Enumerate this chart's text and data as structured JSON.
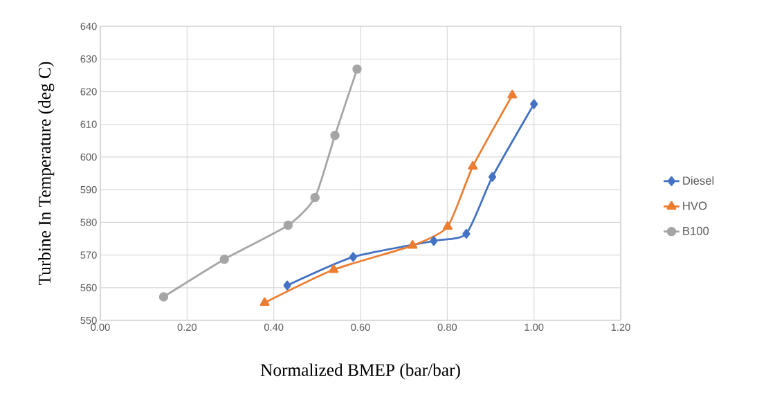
{
  "chart_data": {
    "type": "line",
    "xlabel": "Normalized BMEP (bar/bar)",
    "ylabel": "Turbine In Temperature (deg C)",
    "xlim": [
      0,
      1.2
    ],
    "ylim": [
      550,
      640
    ],
    "xticks": [
      {
        "value": 0,
        "label": "0.00"
      },
      {
        "value": 0.2,
        "label": "0.20"
      },
      {
        "value": 0.4,
        "label": "0.40"
      },
      {
        "value": 0.6,
        "label": "0.60"
      },
      {
        "value": 0.8,
        "label": "0.80"
      },
      {
        "value": 1.0,
        "label": "1.00"
      },
      {
        "value": 1.2,
        "label": "1.20"
      }
    ],
    "yticks": [
      550,
      560,
      570,
      580,
      590,
      600,
      610,
      620,
      630,
      640
    ],
    "grid": true,
    "legend": "right",
    "line_style": "solid",
    "series": [
      {
        "name": "Diesel",
        "color": "#4472c4",
        "marker": "diamond",
        "x": [
          0.431,
          0.583,
          0.769,
          0.844,
          0.904,
          1.0
        ],
        "values": [
          560.7,
          569.4,
          574.3,
          576.5,
          593.9,
          616.2
        ]
      },
      {
        "name": "HVO",
        "color": "#ed7d31",
        "marker": "triangle",
        "x": [
          0.379,
          0.538,
          0.72,
          0.801,
          0.859,
          0.95
        ],
        "values": [
          555.4,
          565.5,
          572.9,
          578.7,
          597.1,
          618.9
        ]
      },
      {
        "name": "B100",
        "color": "#a5a5a5",
        "marker": "circle",
        "x": [
          0.146,
          0.286,
          0.433,
          0.495,
          0.541,
          0.592
        ],
        "values": [
          557.2,
          568.7,
          579.1,
          587.6,
          606.6,
          626.9
        ]
      }
    ]
  }
}
